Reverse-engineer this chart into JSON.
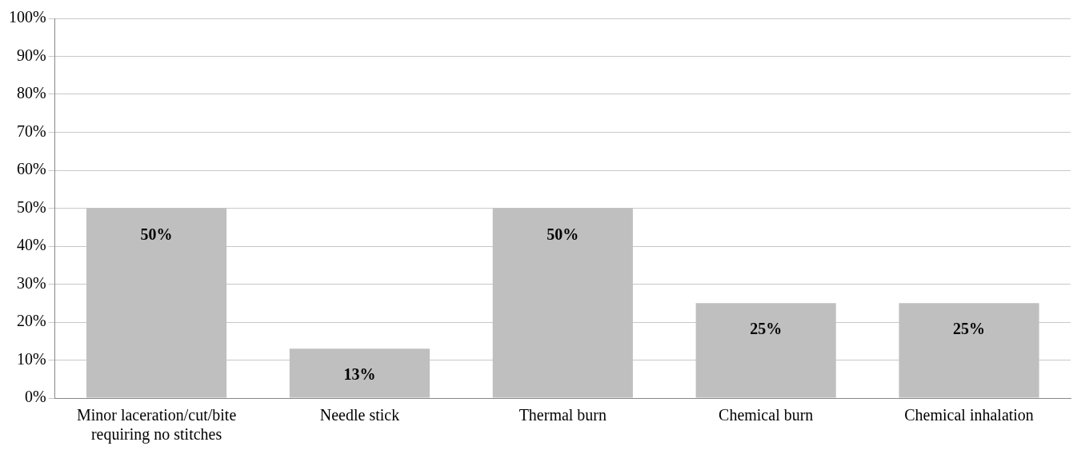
{
  "chart_data": {
    "type": "bar",
    "categories": [
      "Minor laceration/cut/bite requiring no stitches",
      "Needle stick",
      "Thermal burn",
      "Chemical burn",
      "Chemical inhalation"
    ],
    "values": [
      50,
      13,
      50,
      25,
      25
    ],
    "value_labels": [
      "50%",
      "13%",
      "50%",
      "25%",
      "25%"
    ],
    "color": "#bfbfbf",
    "ylim": [
      0,
      100
    ],
    "yticks": [
      {
        "value": 0,
        "label": "0%"
      },
      {
        "value": 10,
        "label": "10%"
      },
      {
        "value": 20,
        "label": "20%"
      },
      {
        "value": 30,
        "label": "30%"
      },
      {
        "value": 40,
        "label": "40%"
      },
      {
        "value": 50,
        "label": "50%"
      },
      {
        "value": 60,
        "label": "60%"
      },
      {
        "value": 70,
        "label": "70%"
      },
      {
        "value": 80,
        "label": "80%"
      },
      {
        "value": 90,
        "label": "90%"
      },
      {
        "value": 100,
        "label": "100%"
      }
    ],
    "grid": "y",
    "legend": false
  }
}
